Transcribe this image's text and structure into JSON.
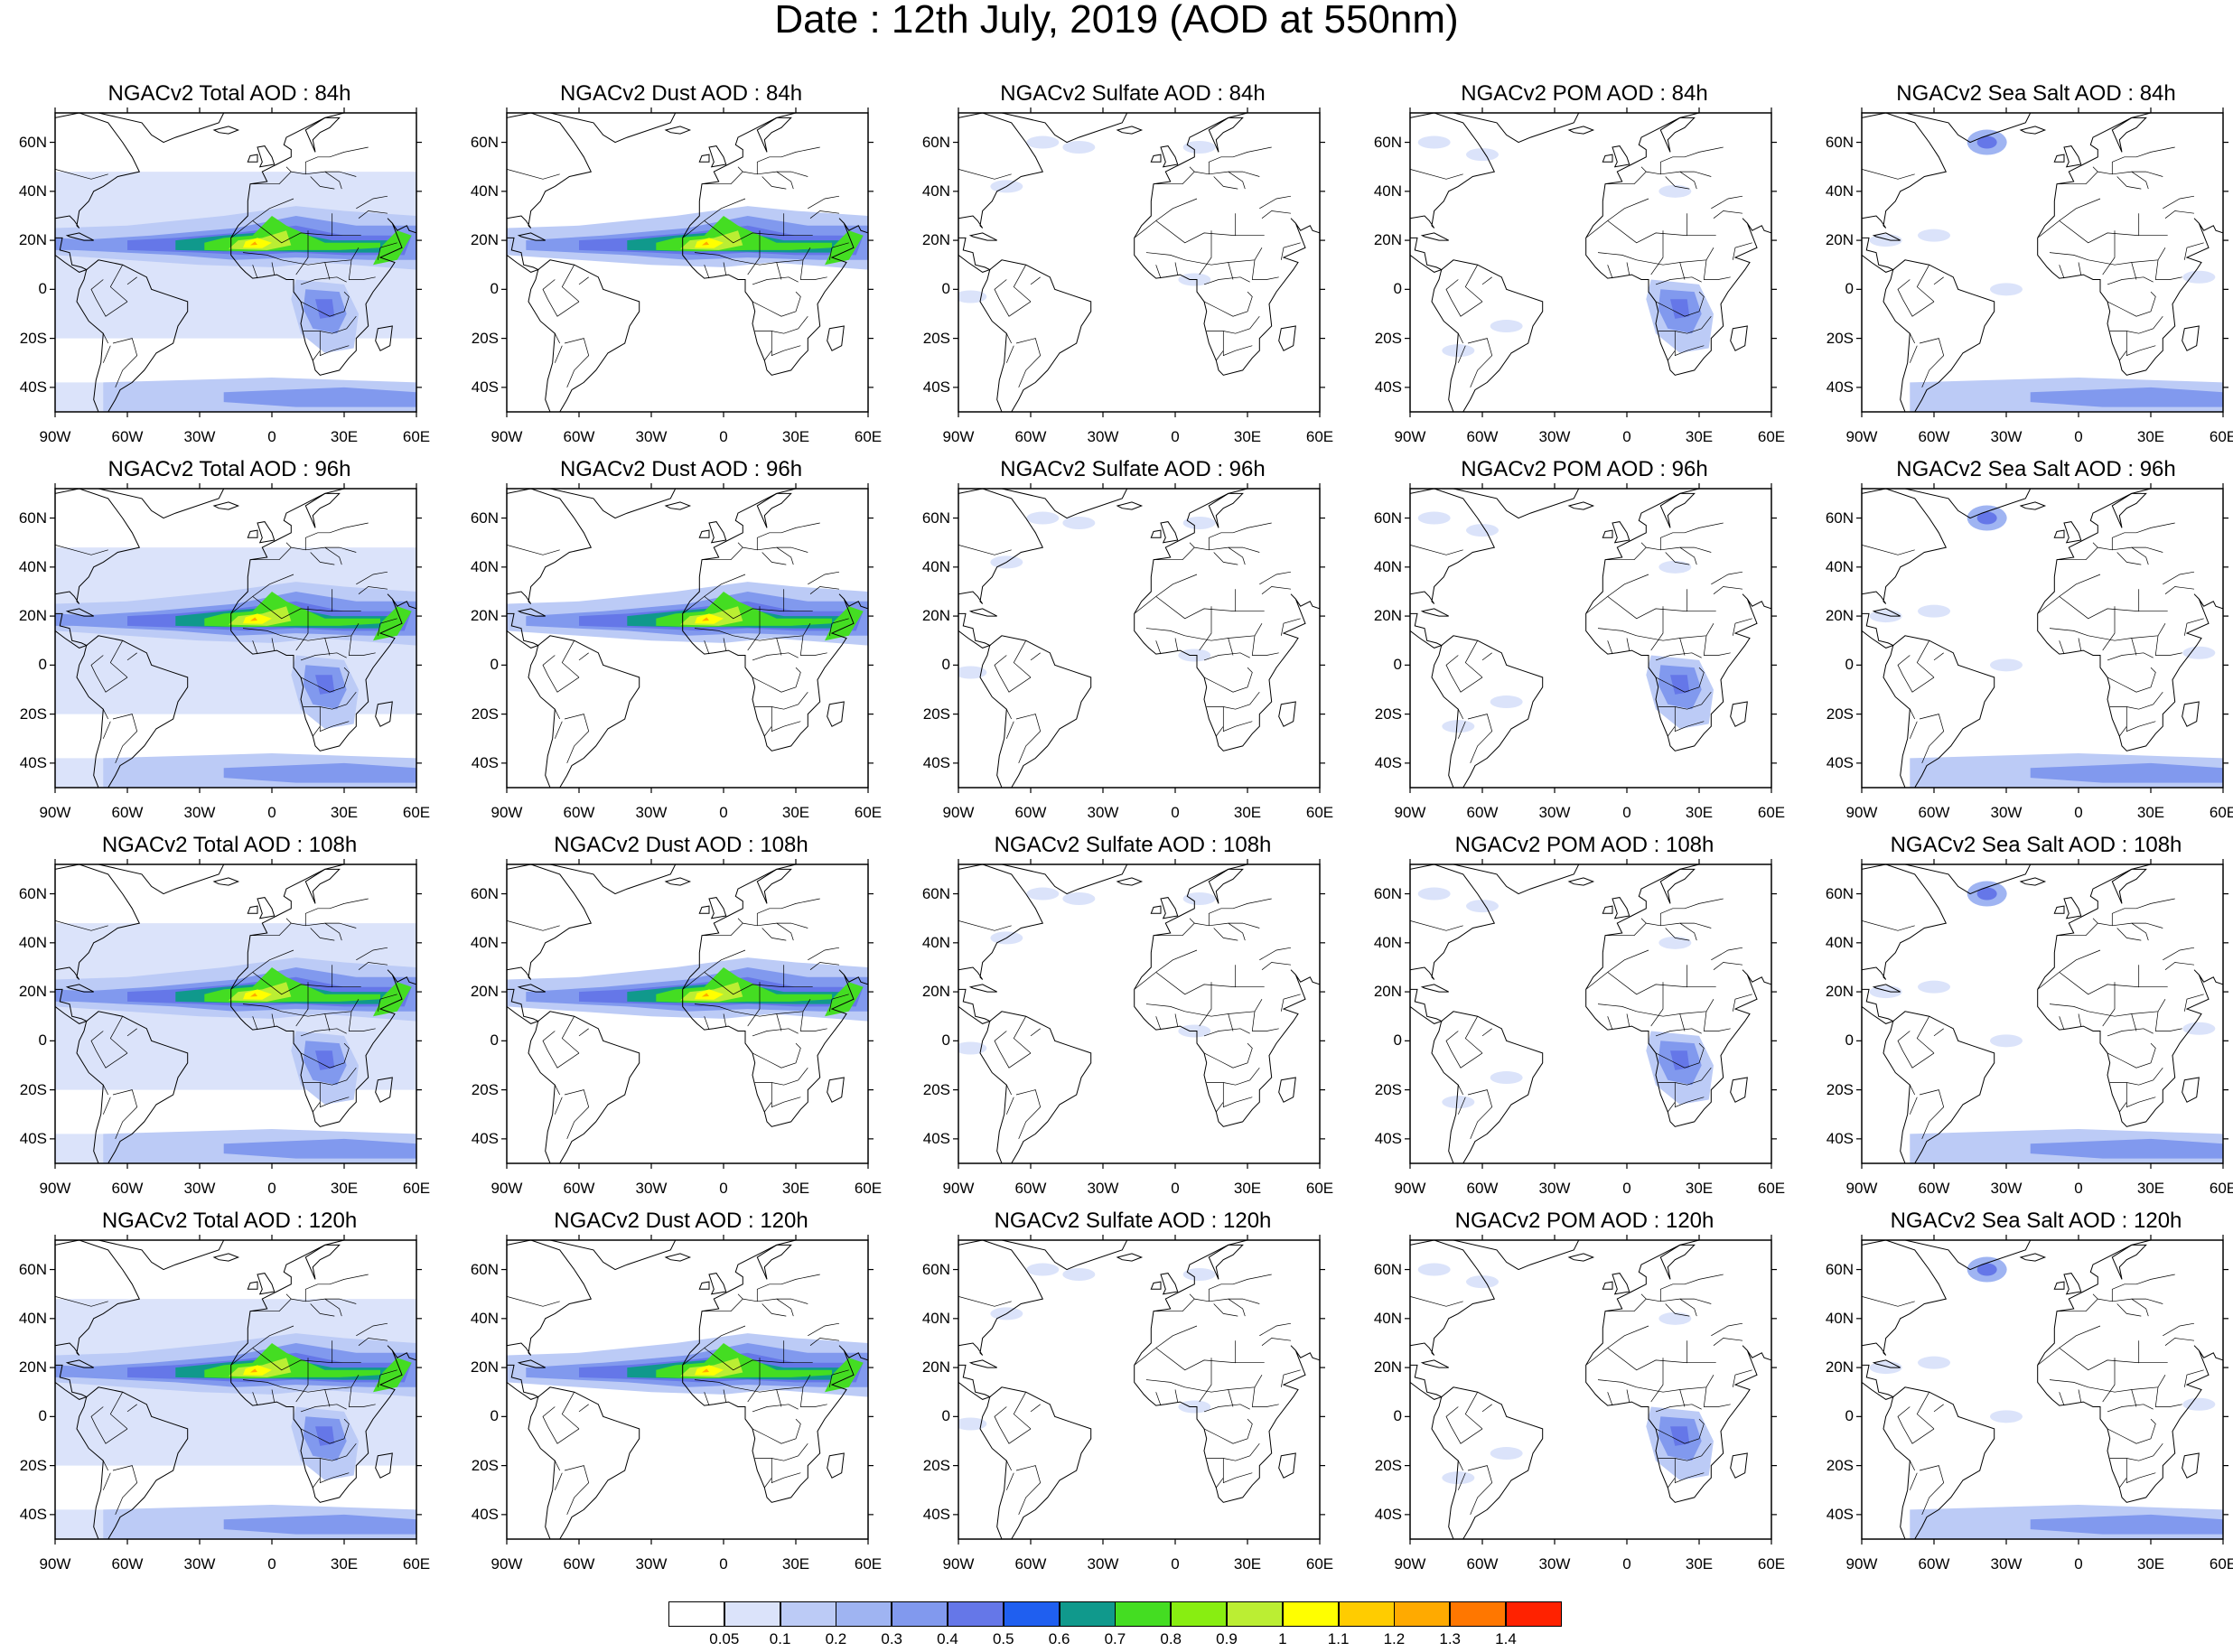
{
  "title": "Date : 12th July, 2019 (AOD at 550nm)",
  "lat_labels": [
    "60N",
    "40N",
    "20N",
    "0",
    "20S",
    "40S"
  ],
  "lon_labels": [
    "90W",
    "60W",
    "30W",
    "0",
    "30E",
    "60E"
  ],
  "grid": [
    [
      "NGACv2 Total AOD : 84h",
      "NGACv2 Dust AOD : 84h",
      "NGACv2 Sulfate AOD : 84h",
      "NGACv2 POM AOD : 84h",
      "NGACv2 Sea Salt AOD : 84h"
    ],
    [
      "NGACv2 Total AOD : 96h",
      "NGACv2 Dust AOD : 96h",
      "NGACv2 Sulfate AOD : 96h",
      "NGACv2 POM AOD : 96h",
      "NGACv2 Sea Salt AOD : 96h"
    ],
    [
      "NGACv2 Total AOD : 108h",
      "NGACv2 Dust AOD : 108h",
      "NGACv2 Sulfate AOD : 108h",
      "NGACv2 POM AOD : 108h",
      "NGACv2 Sea Salt AOD : 108h"
    ],
    [
      "NGACv2 Total AOD : 120h",
      "NGACv2 Dust AOD : 120h",
      "NGACv2 Sulfate AOD : 120h",
      "NGACv2 POM AOD : 120h",
      "NGACv2 Sea Salt  AOD : 120h"
    ]
  ],
  "colorbar": {
    "labels": [
      "0.05",
      "0.1",
      "0.2",
      "0.3",
      "0.4",
      "0.5",
      "0.6",
      "0.7",
      "0.8",
      "0.9",
      "1",
      "1.1",
      "1.2",
      "1.3",
      "1.4"
    ],
    "colors": [
      "#ffffff",
      "#dbe3fa",
      "#bccbf6",
      "#9fb4f2",
      "#8199ee",
      "#6577e8",
      "#1f5ff0",
      "#10998c",
      "#44dd22",
      "#88ee11",
      "#bbee33",
      "#ffff00",
      "#ffcc00",
      "#ffaa00",
      "#ff7700",
      "#ff2200"
    ]
  },
  "palette": {
    "level1": "#dbe3fa",
    "level2": "#bccbf6",
    "level3": "#9fb4f2",
    "level4": "#8199ee",
    "level5": "#6577e8",
    "teal": "#10998c",
    "green": "#44dd22",
    "lime": "#bbee33",
    "yellow": "#ffff00",
    "orange": "#ffaa00",
    "land_outline": "#000000"
  }
}
